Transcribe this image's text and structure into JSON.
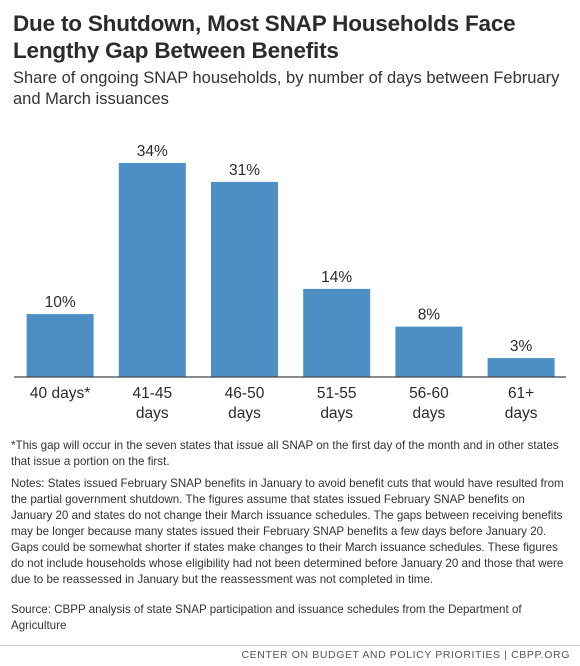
{
  "title": "Due to Shutdown, Most SNAP Households Face Lengthy Gap Between Benefits",
  "subtitle": "Share of ongoing SNAP households, by number of days between February and March issuances",
  "chart_data": {
    "type": "bar",
    "categories": [
      "40 days*",
      "41-45 days",
      "46-50 days",
      "51-55 days",
      "56-60 days",
      "61+ days"
    ],
    "category_lines": [
      [
        "40 days*"
      ],
      [
        "41-45",
        "days"
      ],
      [
        "46-50",
        "days"
      ],
      [
        "51-55",
        "days"
      ],
      [
        "56-60",
        "days"
      ],
      [
        "61+",
        "days"
      ]
    ],
    "values": [
      10,
      34,
      31,
      14,
      8,
      3
    ],
    "value_labels": [
      "10%",
      "34%",
      "31%",
      "14%",
      "8%",
      "3%"
    ],
    "ylim": [
      0,
      34
    ],
    "bar_color": "#4d8ec4",
    "axis_color": "#444444",
    "grid": false,
    "legend": "none"
  },
  "notes": {
    "footnote": "*This gap will occur in the seven states that issue all SNAP on the first day of the month and in other states that issue a portion on the first.",
    "notes": "Notes: States issued February SNAP benefits in January to avoid benefit cuts that would have resulted from the partial government shutdown. The figures assume that states issued February SNAP benefits on January 20 and states do not change their March issuance schedules. The gaps between receiving benefits may be longer because many states issued their February SNAP benefits a few days before January 20. Gaps could be somewhat shorter if states make changes to their March issuance schedules. These figures do not include households whose eligibility had not been determined before January 20 and those that were due to be reassessed in January but the reassessment was not completed in time.",
    "source": "Source: CBPP analysis of state SNAP participation and issuance schedules from the Department of Agriculture"
  },
  "footer": "CENTER ON BUDGET AND POLICY PRIORITIES | CBPP.ORG"
}
